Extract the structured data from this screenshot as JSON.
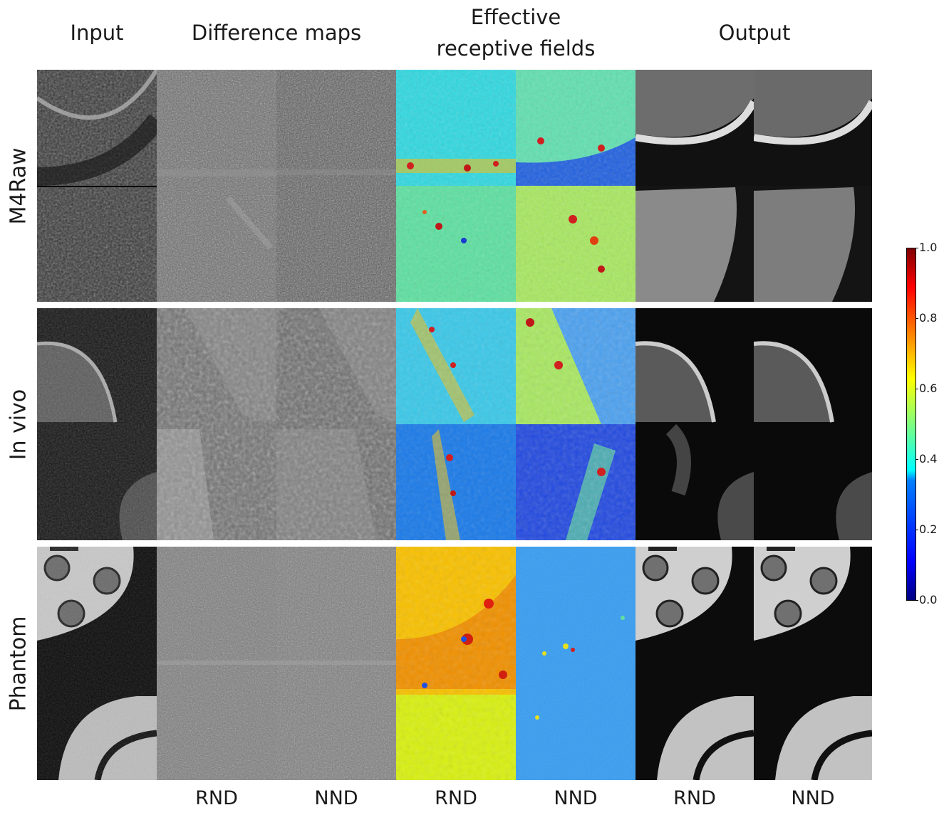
{
  "figure": {
    "column_headers": [
      {
        "id": "input",
        "label": "Input"
      },
      {
        "id": "difference-maps",
        "label": "Difference maps"
      },
      {
        "id": "effective-receptive-fields",
        "label": "Effective\nreceptive fields"
      },
      {
        "id": "output",
        "label": "Output"
      }
    ],
    "row_labels": [
      "M4Raw",
      "In vivo",
      "Phantom"
    ],
    "column_footers": [
      "RND",
      "NND",
      "RND",
      "NND",
      "RND",
      "NND"
    ],
    "colorbar": {
      "ticks": [
        "1.0",
        "0.8",
        "0.6",
        "0.4",
        "0.2",
        "0.0"
      ],
      "range": [
        0.0,
        1.0
      ],
      "colormap": "jet"
    },
    "colors": {
      "background": "#ffffff",
      "text": "#1a1a1a"
    }
  }
}
